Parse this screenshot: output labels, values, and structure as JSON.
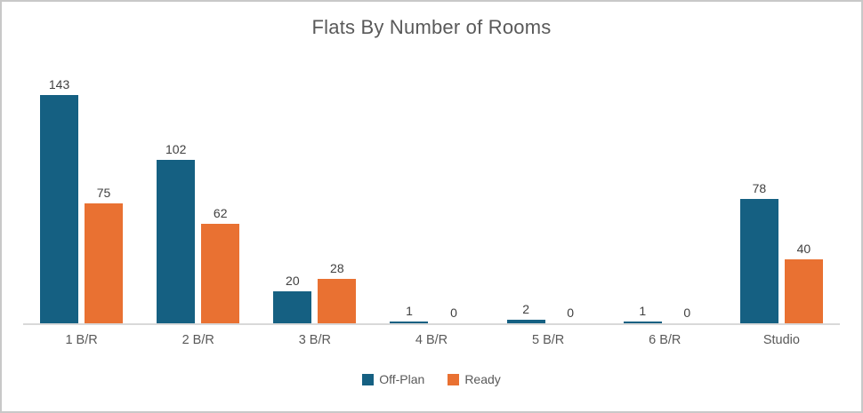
{
  "frame": {
    "border_color": "#c8c8c8",
    "background": "#ffffff"
  },
  "chart_data": {
    "type": "bar",
    "title": "Flats By Number of Rooms",
    "categories": [
      "1 B/R",
      "2 B/R",
      "3 B/R",
      "4 B/R",
      "5 B/R",
      "6 B/R",
      "Studio"
    ],
    "series": [
      {
        "name": "Off-Plan",
        "color": "#156082",
        "values": [
          143,
          102,
          20,
          1,
          2,
          1,
          78
        ]
      },
      {
        "name": "Ready",
        "color": "#E97132",
        "values": [
          75,
          62,
          28,
          0,
          0,
          0,
          40
        ]
      }
    ],
    "value_labels_shown": true,
    "legend_position": "bottom",
    "xlabel": "",
    "ylabel": "",
    "ylim": [
      0,
      160
    ],
    "grid": false,
    "axis_line_color": "#d9d9d9",
    "title_color": "#595959",
    "category_label_color": "#595959",
    "data_label_color": "#404040"
  }
}
